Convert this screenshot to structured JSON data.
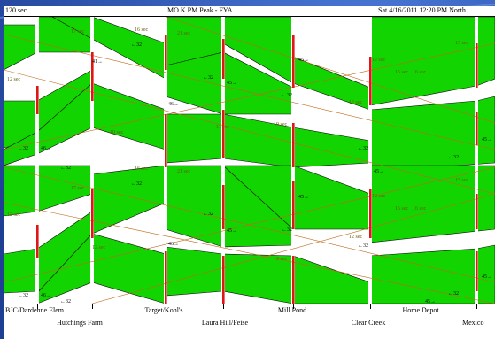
{
  "header": {
    "cycle": "120 sec",
    "title": "MO K PM Peak - FYA",
    "datetime": "Sat  4/16/2011 12:20 PM  North"
  },
  "intersections_row1": [
    "BJC/Dardenne Elem.",
    "Target/Kohl's",
    "Mill Pond",
    "Home Depot"
  ],
  "intersections_row2": [
    "Hutchings Farm",
    "Laura Hill/Feise",
    "Clear Creek",
    "Mexico"
  ],
  "cycle_labels": {
    "s12": "12 sec",
    "s17": "17 sec",
    "s16": "16 sec",
    "s21": "21 sec",
    "s19": "19 sec",
    "s15": "15 sec",
    "s10": "10 sec",
    "s11": "11 sec"
  },
  "speed_labels": {
    "l32": "←32",
    "l46": "46→",
    "l45": "45→",
    "l41": "41→"
  },
  "colors": {
    "band_green": "#11d400",
    "band_outline": "#0a0a0a",
    "offset_red": "#e01515",
    "diagonal_red": "#c06a1a",
    "label_olive": "#6b5a10",
    "background_blue": "#2c4fa6"
  }
}
